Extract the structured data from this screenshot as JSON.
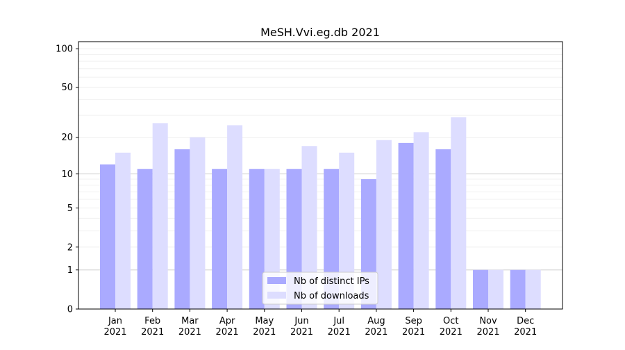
{
  "chart_data": {
    "type": "bar",
    "title": "MeSH.Vvi.eg.db 2021",
    "xlabel": "",
    "ylabel": "",
    "yscale": "symlog",
    "ylim": [
      0,
      110
    ],
    "yticks": [
      0,
      1,
      2,
      5,
      10,
      20,
      50,
      100
    ],
    "ytick_labels": [
      "0",
      "1",
      "2",
      "5",
      "10",
      "20",
      "50",
      "100"
    ],
    "categories": [
      "Jan\n2021",
      "Feb\n2021",
      "Mar\n2021",
      "Apr\n2021",
      "May\n2021",
      "Jun\n2021",
      "Jul\n2021",
      "Aug\n2021",
      "Sep\n2021",
      "Oct\n2021",
      "Nov\n2021",
      "Dec\n2021"
    ],
    "grid": true,
    "legend_position": "lower-center",
    "series": [
      {
        "name": "Nb of distinct IPs",
        "color": "#aaaaff",
        "values": [
          12,
          11,
          16,
          11,
          11,
          11,
          11,
          9,
          18,
          16,
          1,
          1
        ]
      },
      {
        "name": "Nb of downloads",
        "color": "#ddddff",
        "values": [
          15,
          26,
          20,
          25,
          11,
          17,
          15,
          19,
          22,
          29,
          1,
          1
        ]
      }
    ]
  }
}
